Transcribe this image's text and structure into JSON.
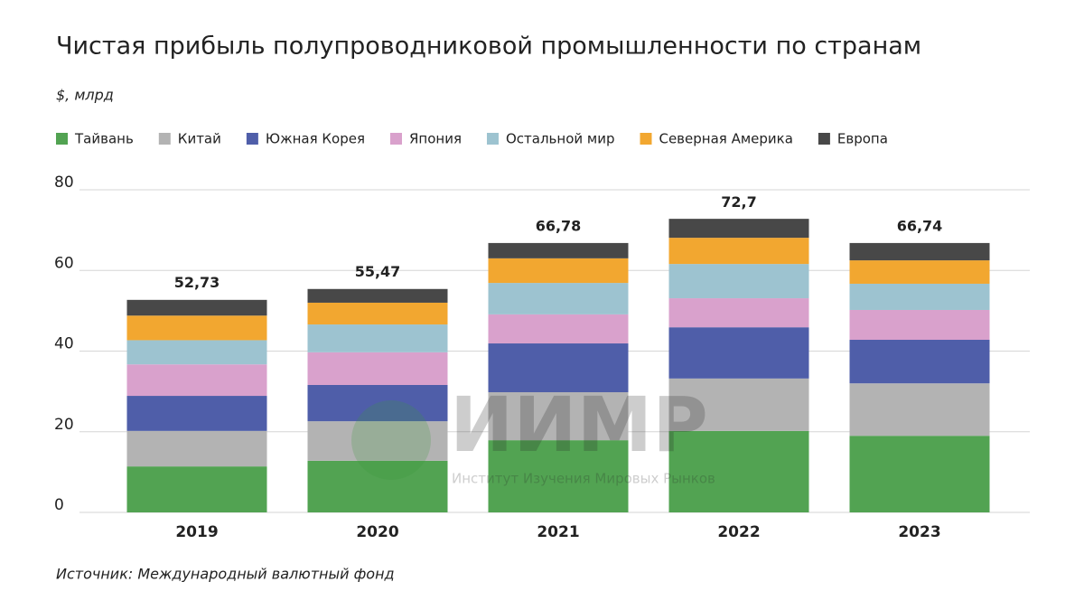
{
  "chart_data": {
    "type": "stacked-bar",
    "title": "Чистая прибыль полупроводниковой промышленности по странам",
    "subtitle": "$, млрд",
    "source": "Источник: Международный валютный фонд",
    "watermark": {
      "title": "ИИМР",
      "subtitle": "Институт Изучения Мировых Рынков"
    },
    "categories": [
      "2019",
      "2020",
      "2021",
      "2022",
      "2023"
    ],
    "series": [
      {
        "name": "Тайвань",
        "color": "#52a352",
        "values": [
          11.4,
          12.8,
          17.9,
          20.2,
          19.0
        ]
      },
      {
        "name": "Китай",
        "color": "#b3b3b3",
        "values": [
          8.8,
          9.8,
          11.9,
          13.0,
          13.0
        ]
      },
      {
        "name": "Южная Корея",
        "color": "#4f5ea9",
        "values": [
          8.7,
          9.0,
          12.1,
          12.7,
          10.8
        ]
      },
      {
        "name": "Япония",
        "color": "#d9a1cc",
        "values": [
          7.8,
          8.1,
          7.2,
          7.2,
          7.4
        ]
      },
      {
        "name": "Остальной мир",
        "color": "#9dc3d0",
        "values": [
          6.0,
          6.9,
          7.8,
          8.5,
          6.5
        ]
      },
      {
        "name": "Северная Америка",
        "color": "#f2a730",
        "values": [
          6.1,
          5.4,
          6.1,
          6.5,
          5.8
        ]
      },
      {
        "name": "Европа",
        "color": "#484848",
        "values": [
          3.9,
          3.4,
          3.8,
          4.7,
          4.3
        ]
      }
    ],
    "totals": {
      "values": [
        52.73,
        55.47,
        66.78,
        72.7,
        66.74
      ],
      "value_labels": [
        "52,73",
        "55,47",
        "66,78",
        "72,7",
        "66,74"
      ]
    },
    "ylim": [
      0,
      80
    ],
    "yticks": [
      0,
      20,
      40,
      60,
      80
    ],
    "grid": true
  }
}
